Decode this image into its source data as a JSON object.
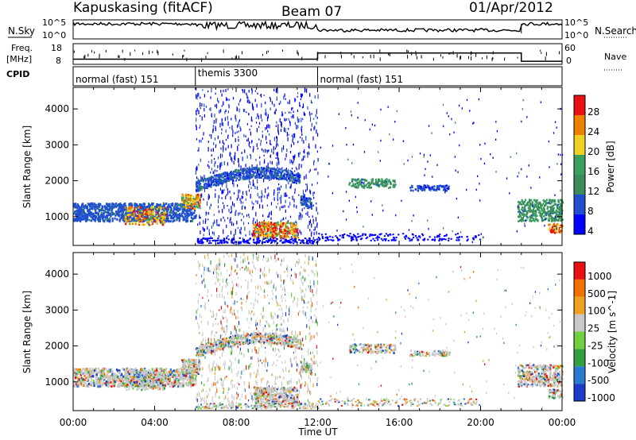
{
  "header": {
    "station": "Kapuskasing (fitACF)",
    "beam": "Beam 07",
    "date": "01/Apr/2012"
  },
  "strip_panels": {
    "nsky_label": "N.Sky",
    "nsky_ticks": [
      "10^5",
      "10^0"
    ],
    "nsearch_label": "N.Search",
    "nsearch_ticks": [
      "10^5",
      "10^0"
    ],
    "freq_label_1": "Freq.",
    "freq_label_2": "[MHz]",
    "freq_ticks": [
      "18",
      "8"
    ],
    "nave_label": "Nave",
    "nave_ticks": [
      "60",
      "0"
    ],
    "cpid_label": "CPID",
    "freq_level_mhz": [
      {
        "start": 0,
        "end": 12,
        "value": 10.5
      },
      {
        "start": 12,
        "end": 22,
        "value": 13.5
      },
      {
        "start": 22,
        "end": 24,
        "value": 9.5
      }
    ],
    "cpid_segments": [
      {
        "start": 0,
        "end": 6,
        "label": "normal (fast) 151"
      },
      {
        "start": 6,
        "end": 12,
        "label": "themis 3300"
      },
      {
        "start": 12,
        "end": 24,
        "label": "normal (fast) 151"
      }
    ]
  },
  "chart_data": [
    {
      "type": "heatmap",
      "name": "Power",
      "ylabel": "Slant Range [km]",
      "yticks": [
        1000,
        2000,
        3000,
        4000
      ],
      "ylim": [
        200,
        4600
      ],
      "xlim": [
        0,
        24
      ],
      "colorbar_label": "Power [dB]",
      "colorbar_ticks": [
        "28",
        "24",
        "20",
        "16",
        "12",
        "8",
        "4"
      ],
      "colors": [
        "#0000ff",
        "#2050d0",
        "#3a8c5a",
        "#3aa060",
        "#f0d020",
        "#f08000",
        "#e81010"
      ]
    },
    {
      "type": "heatmap",
      "name": "Velocity",
      "ylabel": "Slant Range [km]",
      "yticks": [
        1000,
        2000,
        3000,
        4000
      ],
      "ylim": [
        200,
        4600
      ],
      "xlim": [
        0,
        24
      ],
      "xlabel": "Time UT",
      "xticks": [
        "00:00",
        "04:00",
        "08:00",
        "12:00",
        "16:00",
        "20:00",
        "00:00"
      ],
      "colorbar_label": "Velocity [m s^-1]",
      "colorbar_ticks": [
        "1000",
        "500",
        "100",
        "25",
        "-25",
        "-100",
        "-500",
        "-1000"
      ],
      "colors": [
        "#1a3cc8",
        "#2a7ad0",
        "#30a040",
        "#70d040",
        "#c8c8c8",
        "#f0a020",
        "#f07000",
        "#e81010"
      ]
    }
  ]
}
